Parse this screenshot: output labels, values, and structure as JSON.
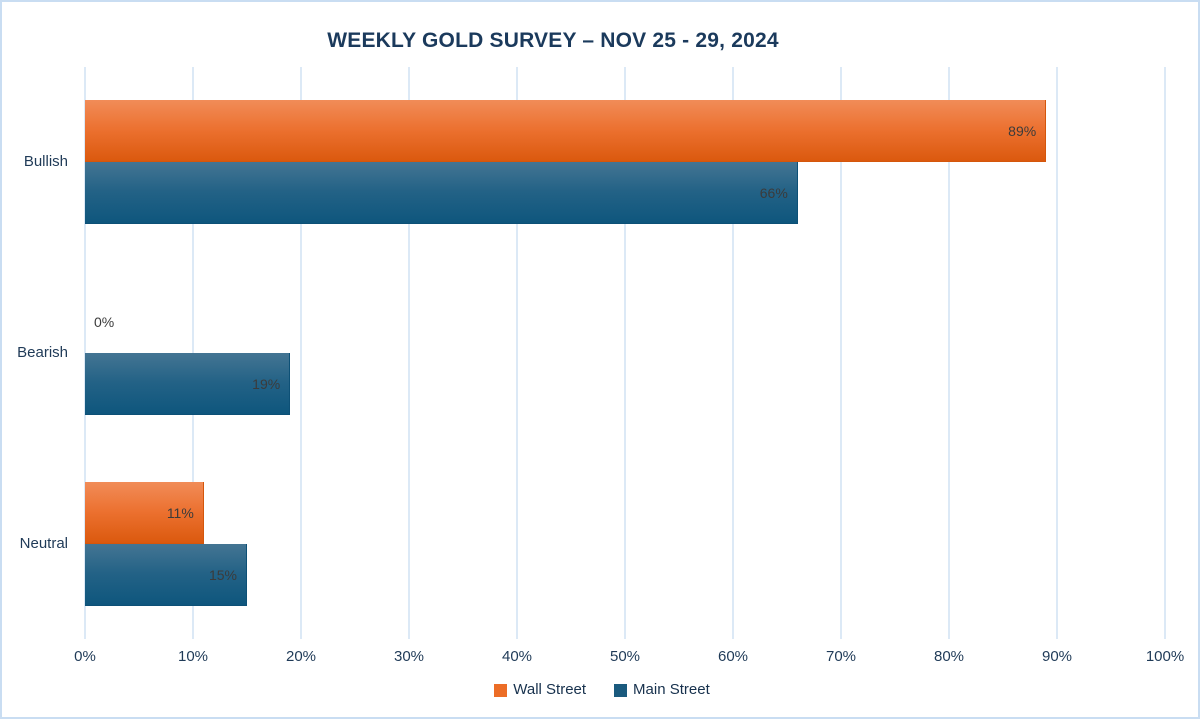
{
  "chart_data": {
    "type": "bar",
    "orientation": "horizontal",
    "title": "WEEKLY GOLD SURVEY – NOV 25 - 29, 2024",
    "categories": [
      "Bullish",
      "Bearish",
      "Neutral"
    ],
    "series": [
      {
        "name": "Wall Street",
        "values": [
          89,
          0,
          11
        ],
        "labels": [
          "89%",
          "0%",
          "11%"
        ],
        "color": "#ec6d26"
      },
      {
        "name": "Main Street",
        "values": [
          66,
          19,
          15
        ],
        "labels": [
          "66%",
          "19%",
          "15%"
        ],
        "color": "#1a5a7e"
      }
    ],
    "x_axis": {
      "min": 0,
      "max": 100,
      "tick_step": 10,
      "tick_labels": [
        "0%",
        "10%",
        "20%",
        "30%",
        "40%",
        "50%",
        "60%",
        "70%",
        "80%",
        "90%",
        "100%"
      ]
    },
    "legend_position": "bottom",
    "grid": true,
    "colors": {
      "wall_street_gradient_top": "#f18c58",
      "wall_street_gradient_bottom": "#db590e",
      "main_street_gradient_top": "#447593",
      "main_street_gradient_bottom": "#0e567d",
      "gridline": "#dce9f6",
      "frame_border": "#c9ddf2",
      "title_text": "#1b3a5c",
      "axis_text": "#1f3a57",
      "data_label_text": "#3b3b3b"
    }
  }
}
